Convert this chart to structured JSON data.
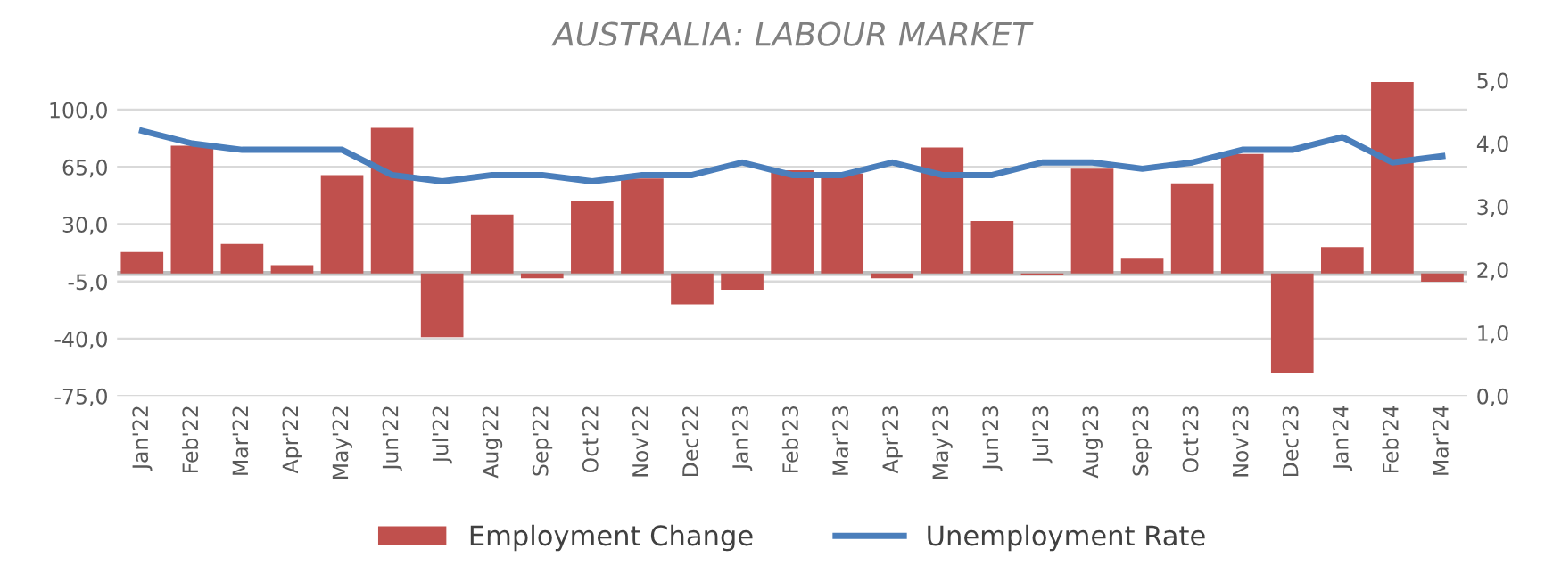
{
  "chart_data": {
    "type": "bar",
    "title": "AUSTRALIA: LABOUR MARKET",
    "categories": [
      "Jan'22",
      "Feb'22",
      "Mar'22",
      "Apr'22",
      "May'22",
      "Jun'22",
      "Jul'22",
      "Aug'22",
      "Sep'22",
      "Oct'22",
      "Nov'22",
      "Dec'22",
      "Jan'23",
      "Feb'23",
      "Mar'23",
      "Apr'23",
      "May'23",
      "Jun'23",
      "Jul'23",
      "Aug'23",
      "Sep'23",
      "Oct'23",
      "Nov'23",
      "Dec'23",
      "Jan'24",
      "Feb'24",
      "Mar'24"
    ],
    "series": [
      {
        "name": "Employment Change",
        "color": "#c0504d",
        "values": [
          13,
          78,
          18,
          5,
          60,
          89,
          -39,
          36,
          -3,
          44,
          58,
          -19,
          -10,
          63,
          61,
          -3,
          77,
          32,
          -1,
          64,
          9,
          55,
          73,
          -61,
          16,
          117,
          -5
        ]
      },
      {
        "name": "Unemployment Rate",
        "type": "line",
        "axis": "y2",
        "color": "#4a7ebb",
        "values": [
          4.2,
          4.0,
          3.9,
          3.9,
          3.9,
          3.5,
          3.4,
          3.5,
          3.5,
          3.4,
          3.5,
          3.5,
          3.7,
          3.5,
          3.5,
          3.7,
          3.5,
          3.5,
          3.7,
          3.7,
          3.6,
          3.7,
          3.9,
          3.9,
          4.1,
          3.7,
          3.8
        ]
      }
    ],
    "ylim": [
      -75,
      118
    ],
    "yticks": [
      {
        "value": -75,
        "label": "-75,0"
      },
      {
        "value": -40,
        "label": "-40,0"
      },
      {
        "value": -5,
        "label": "-5,0"
      },
      {
        "value": 30,
        "label": "30,0"
      },
      {
        "value": 65,
        "label": "65,0"
      },
      {
        "value": 100,
        "label": "100,0"
      }
    ],
    "y2lim": [
      0,
      5
    ],
    "y2ticks": [
      {
        "value": 0,
        "label": "0,0"
      },
      {
        "value": 1,
        "label": "1,0"
      },
      {
        "value": 2,
        "label": "2,0"
      },
      {
        "value": 3,
        "label": "3,0"
      },
      {
        "value": 4,
        "label": "4,0"
      },
      {
        "value": 5,
        "label": "5,0"
      }
    ],
    "grid": "y",
    "legend": "bottom",
    "marker": "none",
    "line_style": "solid"
  }
}
